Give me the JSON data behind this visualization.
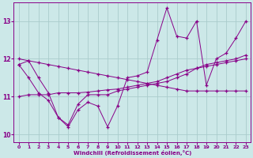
{
  "xlabel": "Windchill (Refroidissement éolien,°C)",
  "background_color": "#cce8e8",
  "grid_color": "#aacccc",
  "line_color": "#880088",
  "x": [
    0,
    1,
    2,
    3,
    4,
    5,
    6,
    7,
    8,
    9,
    10,
    11,
    12,
    13,
    14,
    15,
    16,
    17,
    18,
    19,
    20,
    21,
    22,
    23
  ],
  "y_main": [
    11.85,
    11.95,
    11.5,
    11.1,
    10.45,
    10.2,
    10.65,
    10.85,
    10.75,
    10.2,
    10.75,
    11.5,
    11.55,
    11.65,
    12.5,
    13.35,
    12.6,
    12.55,
    13.0,
    11.3,
    12.0,
    12.15,
    12.55,
    13.0
  ],
  "y_line2": [
    11.85,
    11.5,
    11.1,
    10.9,
    10.45,
    10.25,
    10.8,
    11.05,
    11.05,
    11.05,
    11.15,
    11.2,
    11.25,
    11.3,
    11.35,
    11.4,
    11.5,
    11.6,
    11.75,
    11.85,
    11.9,
    11.95,
    12.0,
    12.1
  ],
  "y_line3": [
    11.0,
    11.05,
    11.05,
    11.05,
    11.1,
    11.1,
    11.1,
    11.12,
    11.15,
    11.18,
    11.2,
    11.25,
    11.3,
    11.35,
    11.4,
    11.5,
    11.6,
    11.7,
    11.75,
    11.8,
    11.85,
    11.9,
    11.95,
    12.0
  ],
  "y_line4": [
    12.0,
    11.95,
    11.9,
    11.85,
    11.8,
    11.75,
    11.7,
    11.65,
    11.6,
    11.55,
    11.5,
    11.45,
    11.4,
    11.35,
    11.3,
    11.25,
    11.2,
    11.15,
    11.15,
    11.15,
    11.15,
    11.15,
    11.15,
    11.15
  ],
  "ylim": [
    9.8,
    13.5
  ],
  "yticks": [
    10,
    11,
    12,
    13
  ],
  "xticks": [
    0,
    1,
    2,
    3,
    4,
    5,
    6,
    7,
    8,
    9,
    10,
    11,
    12,
    13,
    14,
    15,
    16,
    17,
    18,
    19,
    20,
    21,
    22,
    23
  ]
}
